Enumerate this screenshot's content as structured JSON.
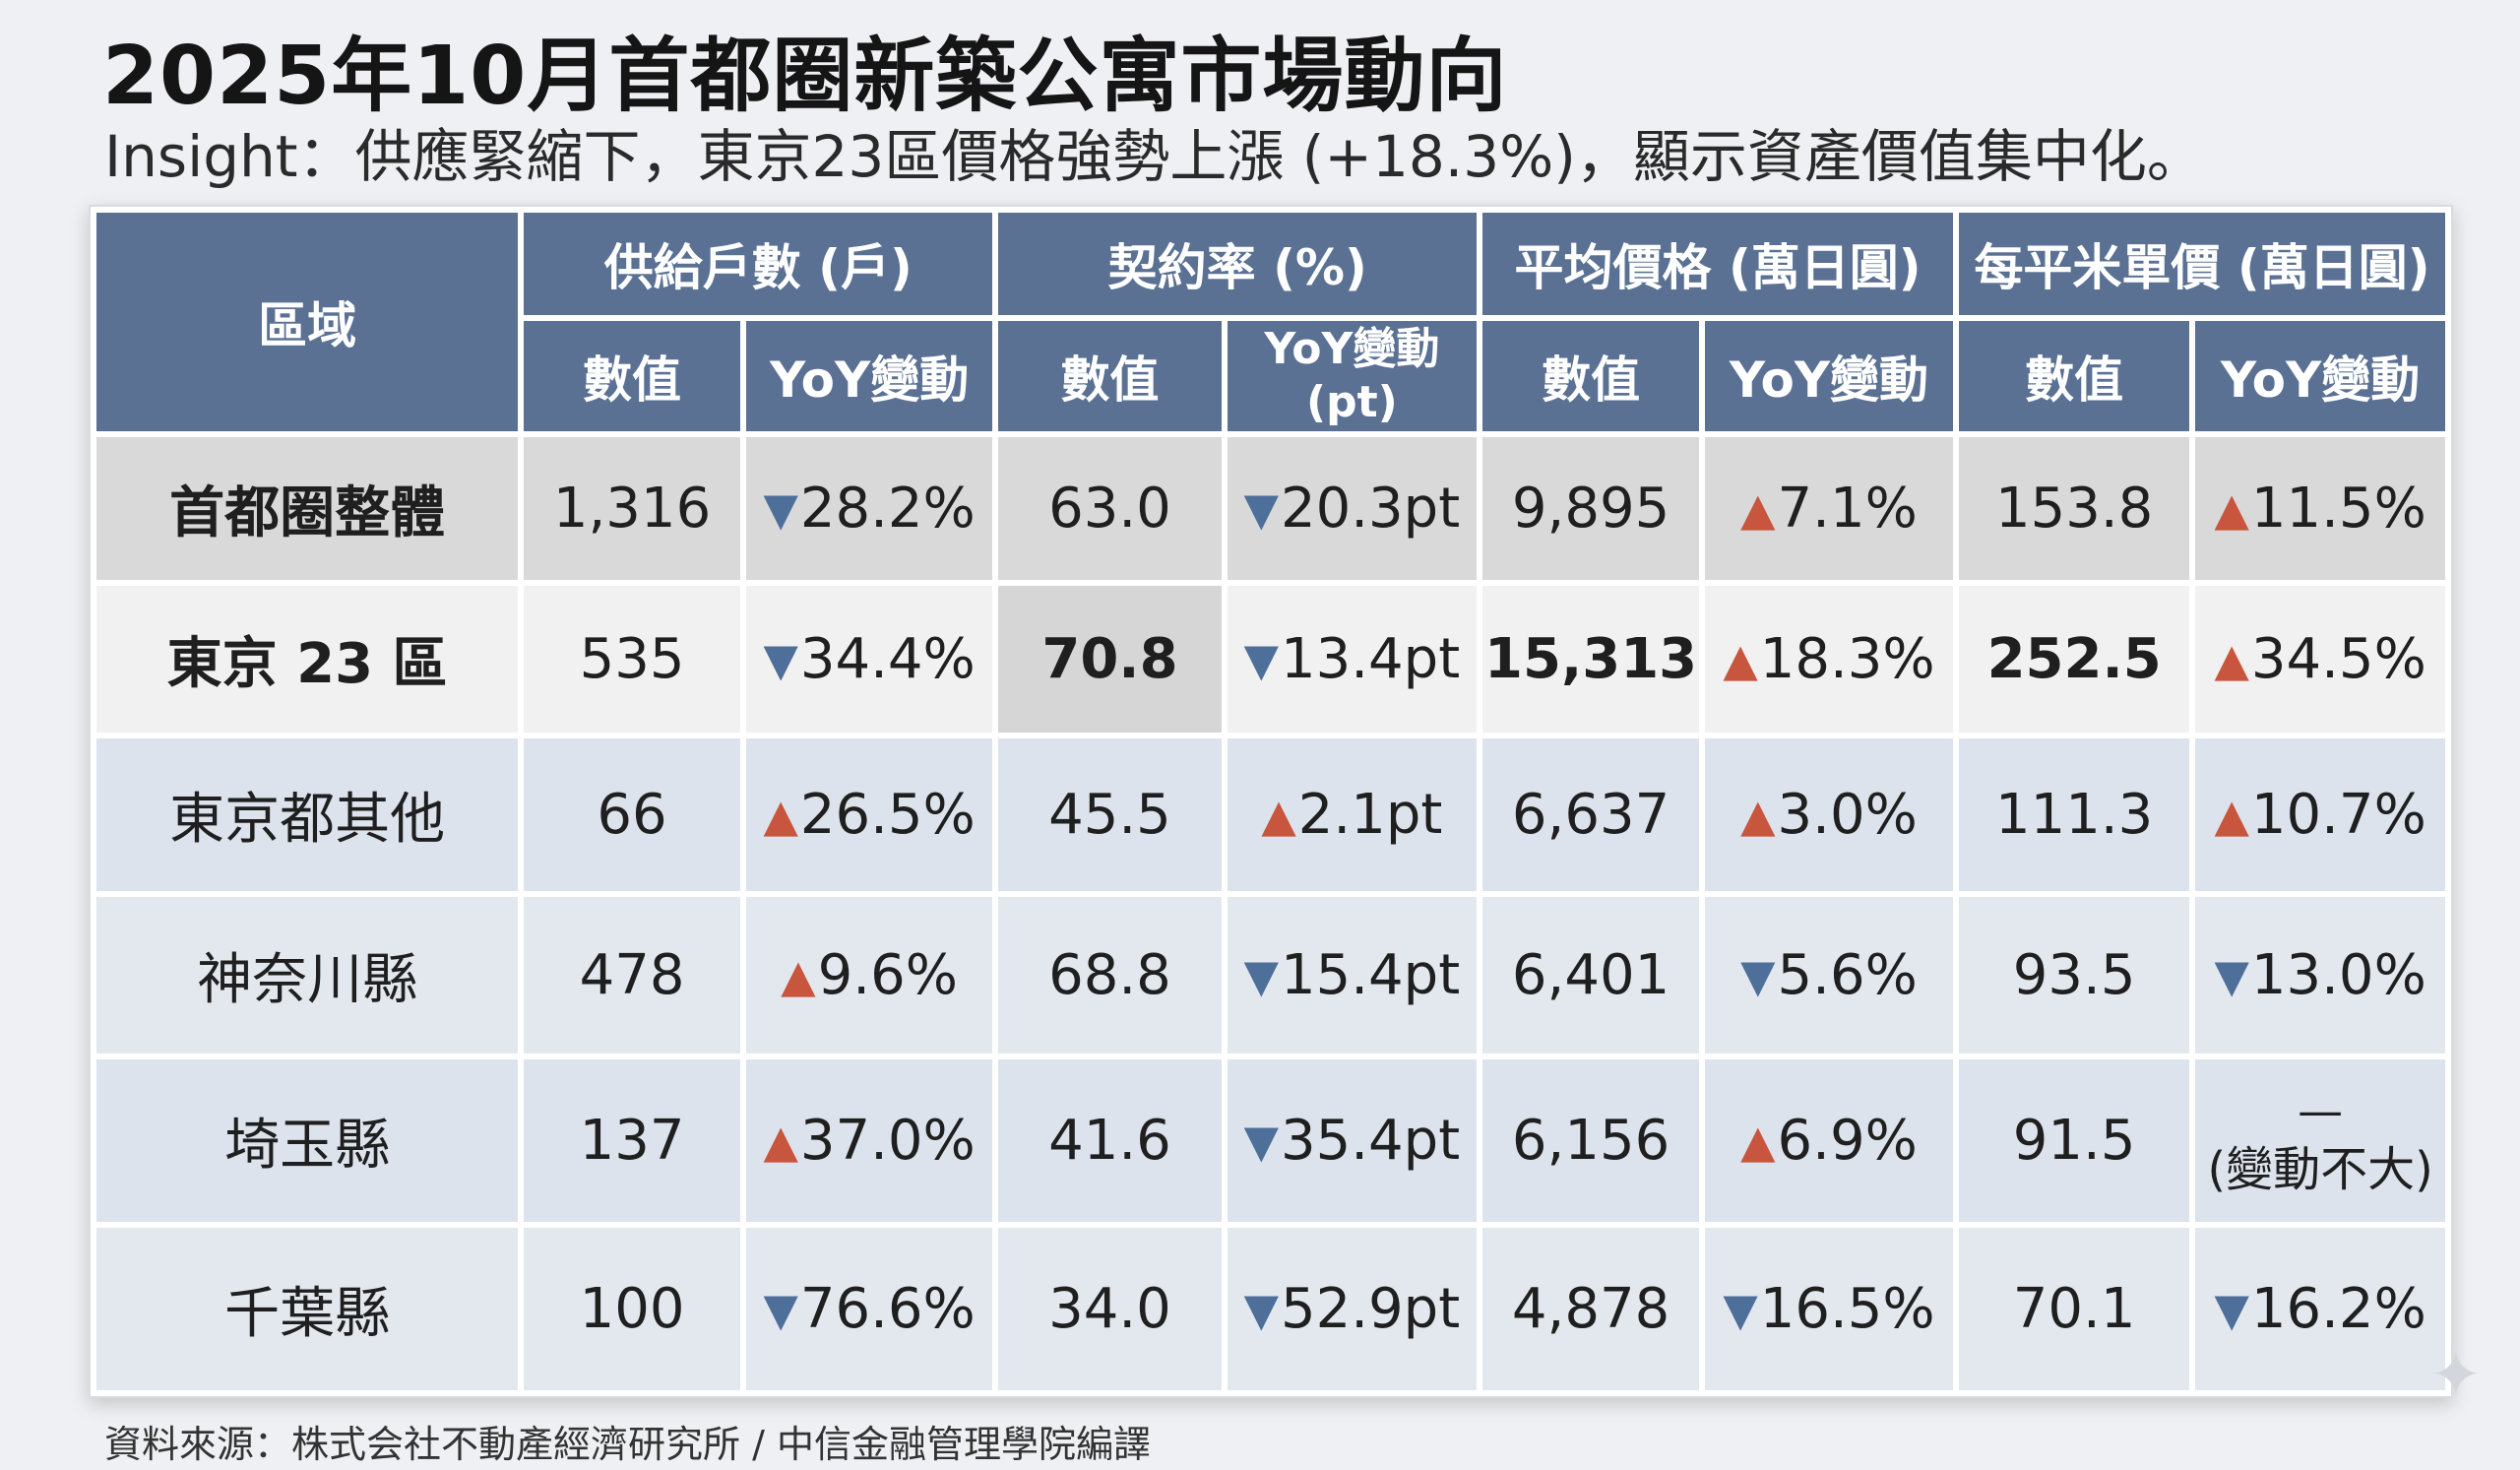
{
  "title": "2025年10月首都圈新築公寓市場動向",
  "subtitle": "Insight：供應緊縮下，東京23區價格強勢上漲 (+18.3%)，顯示資產價值集中化。",
  "source": "資料來源：株式会社不動產經濟研究所 / 中信金融管理學院編譯",
  "colors": {
    "header": "#5a7194",
    "down": "#4d6f99",
    "up": "#c8553d"
  },
  "chart_data": {
    "type": "table",
    "header": {
      "area": "區域",
      "groups": [
        "供給戶數 (戶)",
        "契約率 (%)",
        "平均價格 (萬日圓)",
        "每平米單價 (萬日圓)"
      ],
      "value_label": "數值",
      "yoy_label": "YoY變動",
      "yoy_pt_label": "YoY變動",
      "yoy_pt_unit": "(pt)"
    },
    "rows": [
      {
        "area": "首都圈整體",
        "supply": {
          "value": "1,316",
          "yoy": "28.2%",
          "dir": "down"
        },
        "contract": {
          "value": "63.0",
          "yoy": "20.3pt",
          "dir": "down"
        },
        "price": {
          "value": "9,895",
          "yoy": "7.1%",
          "dir": "up"
        },
        "unit": {
          "value": "153.8",
          "yoy": "11.5%",
          "dir": "up"
        }
      },
      {
        "area": "東京 23 區",
        "supply": {
          "value": "535",
          "yoy": "34.4%",
          "dir": "down"
        },
        "contract": {
          "value": "70.8",
          "yoy": "13.4pt",
          "dir": "down"
        },
        "price": {
          "value": "15,313",
          "yoy": "18.3%",
          "dir": "up"
        },
        "unit": {
          "value": "252.5",
          "yoy": "34.5%",
          "dir": "up"
        }
      },
      {
        "area": "東京都其他",
        "supply": {
          "value": "66",
          "yoy": "26.5%",
          "dir": "up"
        },
        "contract": {
          "value": "45.5",
          "yoy": "2.1pt",
          "dir": "up"
        },
        "price": {
          "value": "6,637",
          "yoy": "3.0%",
          "dir": "up"
        },
        "unit": {
          "value": "111.3",
          "yoy": "10.7%",
          "dir": "up"
        }
      },
      {
        "area": "神奈川縣",
        "supply": {
          "value": "478",
          "yoy": "9.6%",
          "dir": "up"
        },
        "contract": {
          "value": "68.8",
          "yoy": "15.4pt",
          "dir": "down"
        },
        "price": {
          "value": "6,401",
          "yoy": "5.6%",
          "dir": "down"
        },
        "unit": {
          "value": "93.5",
          "yoy": "13.0%",
          "dir": "down"
        }
      },
      {
        "area": "埼玉縣",
        "supply": {
          "value": "137",
          "yoy": "37.0%",
          "dir": "up"
        },
        "contract": {
          "value": "41.6",
          "yoy": "35.4pt",
          "dir": "down"
        },
        "price": {
          "value": "6,156",
          "yoy": "6.9%",
          "dir": "up"
        },
        "unit": {
          "value": "91.5",
          "yoy_dash": "—",
          "yoy_note": "(變動不大)"
        }
      },
      {
        "area": "千葉縣",
        "supply": {
          "value": "100",
          "yoy": "76.6%",
          "dir": "down"
        },
        "contract": {
          "value": "34.0",
          "yoy": "52.9pt",
          "dir": "down"
        },
        "price": {
          "value": "4,878",
          "yoy": "16.5%",
          "dir": "down"
        },
        "unit": {
          "value": "70.1",
          "yoy": "16.2%",
          "dir": "down"
        }
      }
    ]
  }
}
